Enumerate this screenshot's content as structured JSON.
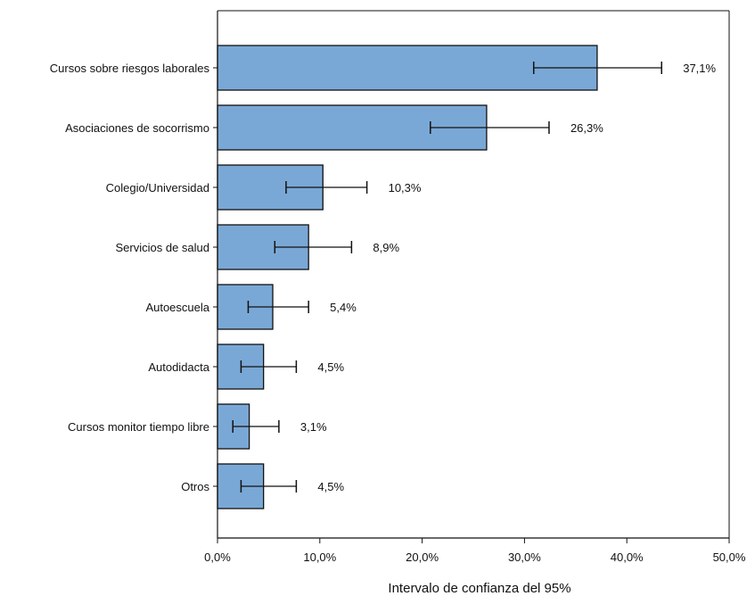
{
  "chart_data": {
    "type": "bar",
    "orientation": "horizontal",
    "categories": [
      "Cursos sobre riesgos laborales",
      "Asociaciones de socorrismo",
      "Colegio/Universidad",
      "Servicios de salud",
      "Autoescuela",
      "Autodidacta",
      "Cursos monitor tiempo libre",
      "Otros"
    ],
    "values": [
      37.1,
      26.3,
      10.3,
      8.9,
      5.4,
      4.5,
      3.1,
      4.5
    ],
    "error_low": [
      30.9,
      20.8,
      6.7,
      5.6,
      3.0,
      2.3,
      1.5,
      2.3
    ],
    "error_high": [
      43.4,
      32.4,
      14.6,
      13.1,
      8.9,
      7.7,
      6.0,
      7.7
    ],
    "value_labels": [
      "37,1%",
      "26,3%",
      "10,3%",
      "8,9%",
      "5,4%",
      "4,5%",
      "3,1%",
      "4,5%"
    ],
    "xlim": [
      0,
      50
    ],
    "x_ticks": [
      0,
      10,
      20,
      30,
      40,
      50
    ],
    "x_tick_labels": [
      "0,0%",
      "10,0%",
      "20,0%",
      "30,0%",
      "40,0%",
      "50,0%"
    ],
    "xlabel": "Intervalo de confianza del 95%",
    "ylabel": "",
    "title": "",
    "grid": false,
    "colors": {
      "bar_fill": "#7aa8d6",
      "bar_stroke": "#111111",
      "error_bar": "#111111",
      "axis": "#111111"
    }
  }
}
